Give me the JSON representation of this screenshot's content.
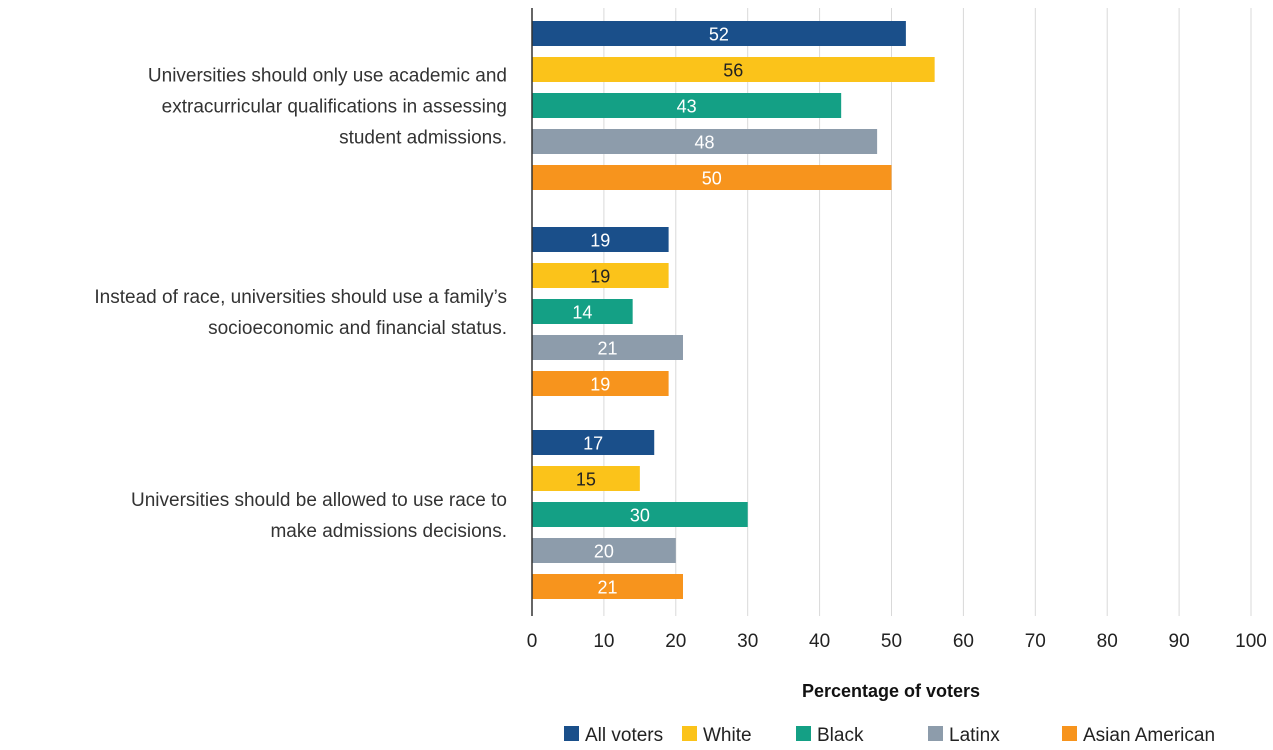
{
  "chart_data": {
    "type": "bar",
    "orientation": "horizontal",
    "categories": [
      "Universities should only use academic and extracurricular qualifications in assessing student admissions.",
      "Instead of race, universities should use a family’s socioeconomic and financial status.",
      "Universities should be allowed to use race to make admissions decisions."
    ],
    "category_lines": [
      [
        "Universities should only use academic and",
        "extracurricular qualifications in assessing",
        "student admissions."
      ],
      [
        "Instead of race, universities should use a family’s",
        "socioeconomic and financial status."
      ],
      [
        "Universities should be allowed to use race to",
        "make admissions decisions."
      ]
    ],
    "series": [
      {
        "name": "All voters",
        "color": "#1a4f8a",
        "label_color": "#ffffff",
        "values": [
          52,
          19,
          17
        ]
      },
      {
        "name": "White",
        "color": "#fbc31a",
        "label_color": "#222222",
        "values": [
          56,
          19,
          15
        ]
      },
      {
        "name": "Black",
        "color": "#14a085",
        "label_color": "#ffffff",
        "values": [
          43,
          14,
          30
        ]
      },
      {
        "name": "Latinx",
        "color": "#8d9cab",
        "label_color": "#ffffff",
        "values": [
          48,
          21,
          20
        ]
      },
      {
        "name": "Asian American",
        "color": "#f7941d",
        "label_color": "#ffffff",
        "values": [
          50,
          19,
          21
        ]
      }
    ],
    "xlabel": "Percentage of voters",
    "xlim": [
      0,
      100
    ],
    "xticks": [
      0,
      10,
      20,
      30,
      40,
      50,
      60,
      70,
      80,
      90,
      100
    ],
    "grid": true,
    "legend": "bottom"
  }
}
